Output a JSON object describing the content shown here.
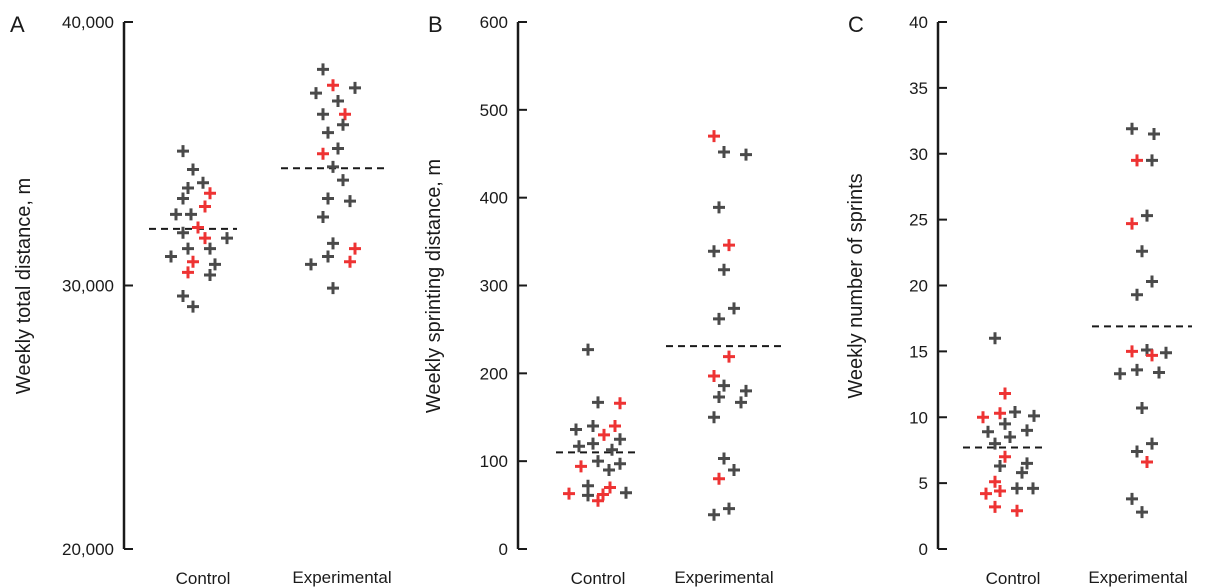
{
  "colors": {
    "control_marker": "#4a4a4a",
    "highlight_marker": "#ee3333",
    "axis": "#1a1a1a",
    "mean_line": "#1a1a1a"
  },
  "chart_data": [
    {
      "type": "scatter",
      "panel": "A",
      "ylabel": "Weekly total distance, m",
      "ylim": [
        20000,
        40000
      ],
      "yticks": [
        20000,
        30000,
        40000
      ],
      "ytick_labels": [
        "20,000",
        "30,000",
        "40,000"
      ],
      "categories": [
        "Control",
        "Experimental"
      ],
      "groups": [
        {
          "category": "Control",
          "mean": 32150,
          "points": [
            {
              "y": 35100,
              "hl": false
            },
            {
              "y": 34400,
              "hl": false
            },
            {
              "y": 33900,
              "hl": false
            },
            {
              "y": 33700,
              "hl": false
            },
            {
              "y": 33500,
              "hl": true
            },
            {
              "y": 33300,
              "hl": false
            },
            {
              "y": 33000,
              "hl": true
            },
            {
              "y": 32700,
              "hl": false
            },
            {
              "y": 32700,
              "hl": false
            },
            {
              "y": 32200,
              "hl": true
            },
            {
              "y": 32000,
              "hl": false
            },
            {
              "y": 31800,
              "hl": true
            },
            {
              "y": 31800,
              "hl": false
            },
            {
              "y": 31400,
              "hl": false
            },
            {
              "y": 31400,
              "hl": false
            },
            {
              "y": 31100,
              "hl": false
            },
            {
              "y": 30900,
              "hl": true
            },
            {
              "y": 30800,
              "hl": false
            },
            {
              "y": 30500,
              "hl": true
            },
            {
              "y": 30400,
              "hl": false
            },
            {
              "y": 29600,
              "hl": false
            },
            {
              "y": 29200,
              "hl": false
            }
          ]
        },
        {
          "category": "Experimental",
          "mean": 34450,
          "points": [
            {
              "y": 38200,
              "hl": false
            },
            {
              "y": 37600,
              "hl": true
            },
            {
              "y": 37500,
              "hl": false
            },
            {
              "y": 37300,
              "hl": false
            },
            {
              "y": 37000,
              "hl": false
            },
            {
              "y": 36500,
              "hl": false
            },
            {
              "y": 36500,
              "hl": true
            },
            {
              "y": 36100,
              "hl": false
            },
            {
              "y": 35800,
              "hl": false
            },
            {
              "y": 35200,
              "hl": false
            },
            {
              "y": 35000,
              "hl": true
            },
            {
              "y": 34500,
              "hl": false
            },
            {
              "y": 34000,
              "hl": false
            },
            {
              "y": 33300,
              "hl": false
            },
            {
              "y": 33200,
              "hl": false
            },
            {
              "y": 32600,
              "hl": false
            },
            {
              "y": 31600,
              "hl": false
            },
            {
              "y": 31400,
              "hl": true
            },
            {
              "y": 31100,
              "hl": false
            },
            {
              "y": 30900,
              "hl": true
            },
            {
              "y": 30800,
              "hl": false
            },
            {
              "y": 29900,
              "hl": false
            }
          ]
        }
      ]
    },
    {
      "type": "scatter",
      "panel": "B",
      "ylabel": "Weekly sprinting  distance, m",
      "ylim": [
        0,
        600
      ],
      "yticks": [
        0,
        100,
        200,
        300,
        400,
        500,
        600
      ],
      "ytick_labels": [
        "0",
        "100",
        "200",
        "300",
        "400",
        "500",
        "600"
      ],
      "categories": [
        "Control",
        "Experimental"
      ],
      "groups": [
        {
          "category": "Control",
          "mean": 110,
          "points": [
            {
              "y": 227,
              "hl": false
            },
            {
              "y": 167,
              "hl": false
            },
            {
              "y": 166,
              "hl": true
            },
            {
              "y": 140,
              "hl": false
            },
            {
              "y": 140,
              "hl": true
            },
            {
              "y": 136,
              "hl": false
            },
            {
              "y": 130,
              "hl": true
            },
            {
              "y": 125,
              "hl": false
            },
            {
              "y": 120,
              "hl": false
            },
            {
              "y": 117,
              "hl": false
            },
            {
              "y": 113,
              "hl": false
            },
            {
              "y": 100,
              "hl": false
            },
            {
              "y": 97,
              "hl": false
            },
            {
              "y": 94,
              "hl": true
            },
            {
              "y": 90,
              "hl": false
            },
            {
              "y": 72,
              "hl": false
            },
            {
              "y": 70,
              "hl": true
            },
            {
              "y": 64,
              "hl": false
            },
            {
              "y": 63,
              "hl": true
            },
            {
              "y": 62,
              "hl": true
            },
            {
              "y": 61,
              "hl": false
            },
            {
              "y": 55,
              "hl": true
            }
          ]
        },
        {
          "category": "Experimental",
          "mean": 231,
          "points": [
            {
              "y": 470,
              "hl": true
            },
            {
              "y": 452,
              "hl": false
            },
            {
              "y": 449,
              "hl": false
            },
            {
              "y": 389,
              "hl": false
            },
            {
              "y": 346,
              "hl": true
            },
            {
              "y": 339,
              "hl": false
            },
            {
              "y": 318,
              "hl": false
            },
            {
              "y": 274,
              "hl": false
            },
            {
              "y": 262,
              "hl": false
            },
            {
              "y": 219,
              "hl": true
            },
            {
              "y": 197,
              "hl": true
            },
            {
              "y": 186,
              "hl": false
            },
            {
              "y": 180,
              "hl": false
            },
            {
              "y": 173,
              "hl": false
            },
            {
              "y": 167,
              "hl": false
            },
            {
              "y": 150,
              "hl": false
            },
            {
              "y": 103,
              "hl": false
            },
            {
              "y": 90,
              "hl": false
            },
            {
              "y": 80,
              "hl": true
            },
            {
              "y": 46,
              "hl": false
            },
            {
              "y": 39,
              "hl": false
            }
          ]
        }
      ]
    },
    {
      "type": "scatter",
      "panel": "C",
      "ylabel": "Weekly number of sprints",
      "ylim": [
        0,
        40
      ],
      "yticks": [
        0,
        5,
        10,
        15,
        20,
        25,
        30,
        35,
        40
      ],
      "ytick_labels": [
        "0",
        "5",
        "10",
        "15",
        "20",
        "25",
        "30",
        "35",
        "40"
      ],
      "categories": [
        "Control",
        "Experimental"
      ],
      "groups": [
        {
          "category": "Control",
          "mean": 7.7,
          "points": [
            {
              "y": 16.0,
              "hl": false
            },
            {
              "y": 11.8,
              "hl": true
            },
            {
              "y": 10.4,
              "hl": false
            },
            {
              "y": 10.3,
              "hl": true
            },
            {
              "y": 10.1,
              "hl": false
            },
            {
              "y": 10.0,
              "hl": true
            },
            {
              "y": 9.5,
              "hl": false
            },
            {
              "y": 9.0,
              "hl": false
            },
            {
              "y": 8.9,
              "hl": false
            },
            {
              "y": 8.5,
              "hl": false
            },
            {
              "y": 8.0,
              "hl": false
            },
            {
              "y": 7.0,
              "hl": true
            },
            {
              "y": 6.5,
              "hl": false
            },
            {
              "y": 6.3,
              "hl": false
            },
            {
              "y": 5.8,
              "hl": false
            },
            {
              "y": 5.1,
              "hl": true
            },
            {
              "y": 4.6,
              "hl": false
            },
            {
              "y": 4.6,
              "hl": false
            },
            {
              "y": 4.4,
              "hl": true
            },
            {
              "y": 4.2,
              "hl": true
            },
            {
              "y": 3.2,
              "hl": true
            },
            {
              "y": 2.9,
              "hl": true
            }
          ]
        },
        {
          "category": "Experimental",
          "mean": 16.9,
          "points": [
            {
              "y": 31.9,
              "hl": false
            },
            {
              "y": 31.5,
              "hl": false
            },
            {
              "y": 29.5,
              "hl": false
            },
            {
              "y": 29.5,
              "hl": true
            },
            {
              "y": 25.3,
              "hl": false
            },
            {
              "y": 24.7,
              "hl": true
            },
            {
              "y": 22.6,
              "hl": false
            },
            {
              "y": 20.3,
              "hl": false
            },
            {
              "y": 19.3,
              "hl": false
            },
            {
              "y": 15.1,
              "hl": false
            },
            {
              "y": 15.0,
              "hl": true
            },
            {
              "y": 14.9,
              "hl": false
            },
            {
              "y": 14.7,
              "hl": true
            },
            {
              "y": 13.6,
              "hl": false
            },
            {
              "y": 13.4,
              "hl": false
            },
            {
              "y": 13.3,
              "hl": false
            },
            {
              "y": 10.7,
              "hl": false
            },
            {
              "y": 8.0,
              "hl": false
            },
            {
              "y": 7.4,
              "hl": false
            },
            {
              "y": 6.6,
              "hl": true
            },
            {
              "y": 3.8,
              "hl": false
            },
            {
              "y": 2.8,
              "hl": false
            }
          ]
        }
      ]
    }
  ]
}
